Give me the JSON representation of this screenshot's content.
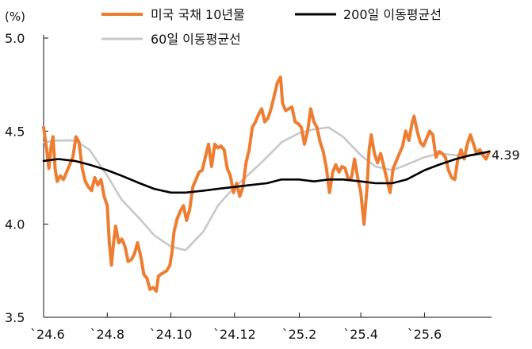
{
  "chart_data": {
    "type": "line",
    "unit_label": "(%)",
    "title": "",
    "xlabel": "",
    "ylabel": "",
    "ylim": [
      3.5,
      5.0
    ],
    "yticks": [
      "5.0",
      "4.5",
      "4.0",
      "3.5"
    ],
    "xticks": [
      {
        "label": "`24.6",
        "x": "2024-06-01"
      },
      {
        "label": "`24.8",
        "x": "2024-08-01"
      },
      {
        "label": "`24.10",
        "x": "2024-10-01"
      },
      {
        "label": "`24.12",
        "x": "2024-12-01"
      },
      {
        "label": "`25.2",
        "x": "2025-02-01"
      },
      {
        "label": "`25.4",
        "x": "2025-04-01"
      },
      {
        "label": "`25.6",
        "x": "2025-06-01"
      }
    ],
    "end_label": "4.39",
    "legend_position": "top",
    "series": [
      {
        "name": "미국 국채 10년물",
        "color": "#ED7D31",
        "points": [
          [
            "2024-06-01",
            4.52
          ],
          [
            "2024-06-04",
            4.4
          ],
          [
            "2024-06-06",
            4.3
          ],
          [
            "2024-06-08",
            4.41
          ],
          [
            "2024-06-10",
            4.47
          ],
          [
            "2024-06-12",
            4.3
          ],
          [
            "2024-06-14",
            4.23
          ],
          [
            "2024-06-17",
            4.26
          ],
          [
            "2024-06-20",
            4.24
          ],
          [
            "2024-06-23",
            4.28
          ],
          [
            "2024-06-26",
            4.32
          ],
          [
            "2024-06-29",
            4.36
          ],
          [
            "2024-07-02",
            4.47
          ],
          [
            "2024-07-05",
            4.44
          ],
          [
            "2024-07-08",
            4.3
          ],
          [
            "2024-07-11",
            4.23
          ],
          [
            "2024-07-14",
            4.2
          ],
          [
            "2024-07-17",
            4.18
          ],
          [
            "2024-07-20",
            4.25
          ],
          [
            "2024-07-23",
            4.21
          ],
          [
            "2024-07-26",
            4.24
          ],
          [
            "2024-07-29",
            4.15
          ],
          [
            "2024-08-01",
            4.1
          ],
          [
            "2024-08-03",
            3.9
          ],
          [
            "2024-08-05",
            3.78
          ],
          [
            "2024-08-07",
            3.9
          ],
          [
            "2024-08-09",
            3.99
          ],
          [
            "2024-08-12",
            3.9
          ],
          [
            "2024-08-15",
            3.92
          ],
          [
            "2024-08-18",
            3.88
          ],
          [
            "2024-08-21",
            3.8
          ],
          [
            "2024-08-24",
            3.81
          ],
          [
            "2024-08-27",
            3.84
          ],
          [
            "2024-08-30",
            3.9
          ],
          [
            "2024-09-02",
            3.83
          ],
          [
            "2024-09-05",
            3.73
          ],
          [
            "2024-09-08",
            3.71
          ],
          [
            "2024-09-11",
            3.65
          ],
          [
            "2024-09-14",
            3.66
          ],
          [
            "2024-09-17",
            3.64
          ],
          [
            "2024-09-19",
            3.72
          ],
          [
            "2024-09-21",
            3.73
          ],
          [
            "2024-09-24",
            3.74
          ],
          [
            "2024-09-27",
            3.75
          ],
          [
            "2024-09-30",
            3.78
          ],
          [
            "2024-10-02",
            3.85
          ],
          [
            "2024-10-04",
            3.96
          ],
          [
            "2024-10-07",
            4.03
          ],
          [
            "2024-10-10",
            4.07
          ],
          [
            "2024-10-13",
            4.1
          ],
          [
            "2024-10-16",
            4.02
          ],
          [
            "2024-10-19",
            4.08
          ],
          [
            "2024-10-22",
            4.2
          ],
          [
            "2024-10-25",
            4.24
          ],
          [
            "2024-10-28",
            4.28
          ],
          [
            "2024-10-31",
            4.29
          ],
          [
            "2024-11-03",
            4.36
          ],
          [
            "2024-11-06",
            4.43
          ],
          [
            "2024-11-09",
            4.31
          ],
          [
            "2024-11-12",
            4.43
          ],
          [
            "2024-11-15",
            4.41
          ],
          [
            "2024-11-18",
            4.42
          ],
          [
            "2024-11-21",
            4.4
          ],
          [
            "2024-11-24",
            4.3
          ],
          [
            "2024-11-27",
            4.26
          ],
          [
            "2024-11-30",
            4.17
          ],
          [
            "2024-12-03",
            4.22
          ],
          [
            "2024-12-06",
            4.15
          ],
          [
            "2024-12-09",
            4.2
          ],
          [
            "2024-12-12",
            4.33
          ],
          [
            "2024-12-15",
            4.4
          ],
          [
            "2024-12-18",
            4.52
          ],
          [
            "2024-12-21",
            4.55
          ],
          [
            "2024-12-24",
            4.59
          ],
          [
            "2024-12-27",
            4.62
          ],
          [
            "2024-12-30",
            4.55
          ],
          [
            "2025-01-02",
            4.57
          ],
          [
            "2025-01-05",
            4.62
          ],
          [
            "2025-01-08",
            4.69
          ],
          [
            "2025-01-11",
            4.76
          ],
          [
            "2025-01-14",
            4.79
          ],
          [
            "2025-01-16",
            4.65
          ],
          [
            "2025-01-19",
            4.61
          ],
          [
            "2025-01-22",
            4.62
          ],
          [
            "2025-01-25",
            4.63
          ],
          [
            "2025-01-28",
            4.55
          ],
          [
            "2025-01-31",
            4.54
          ],
          [
            "2025-02-03",
            4.52
          ],
          [
            "2025-02-06",
            4.43
          ],
          [
            "2025-02-09",
            4.5
          ],
          [
            "2025-02-12",
            4.62
          ],
          [
            "2025-02-15",
            4.55
          ],
          [
            "2025-02-18",
            4.52
          ],
          [
            "2025-02-21",
            4.44
          ],
          [
            "2025-02-24",
            4.39
          ],
          [
            "2025-02-27",
            4.3
          ],
          [
            "2025-03-02",
            4.17
          ],
          [
            "2025-03-05",
            4.28
          ],
          [
            "2025-03-08",
            4.32
          ],
          [
            "2025-03-11",
            4.28
          ],
          [
            "2025-03-14",
            4.31
          ],
          [
            "2025-03-17",
            4.3
          ],
          [
            "2025-03-20",
            4.24
          ],
          [
            "2025-03-23",
            4.25
          ],
          [
            "2025-03-26",
            4.35
          ],
          [
            "2025-03-29",
            4.25
          ],
          [
            "2025-04-01",
            4.17
          ],
          [
            "2025-04-04",
            4.0
          ],
          [
            "2025-04-07",
            4.2
          ],
          [
            "2025-04-09",
            4.4
          ],
          [
            "2025-04-11",
            4.48
          ],
          [
            "2025-04-14",
            4.38
          ],
          [
            "2025-04-17",
            4.33
          ],
          [
            "2025-04-20",
            4.38
          ],
          [
            "2025-04-23",
            4.31
          ],
          [
            "2025-04-26",
            4.24
          ],
          [
            "2025-04-29",
            4.17
          ],
          [
            "2025-05-02",
            4.3
          ],
          [
            "2025-05-05",
            4.34
          ],
          [
            "2025-05-08",
            4.38
          ],
          [
            "2025-05-11",
            4.42
          ],
          [
            "2025-05-14",
            4.5
          ],
          [
            "2025-05-17",
            4.45
          ],
          [
            "2025-05-20",
            4.54
          ],
          [
            "2025-05-22",
            4.58
          ],
          [
            "2025-05-25",
            4.5
          ],
          [
            "2025-05-28",
            4.44
          ],
          [
            "2025-05-31",
            4.42
          ],
          [
            "2025-06-03",
            4.46
          ],
          [
            "2025-06-06",
            4.5
          ],
          [
            "2025-06-09",
            4.48
          ],
          [
            "2025-06-12",
            4.36
          ],
          [
            "2025-06-15",
            4.39
          ],
          [
            "2025-06-18",
            4.38
          ],
          [
            "2025-06-21",
            4.36
          ],
          [
            "2025-06-24",
            4.29
          ],
          [
            "2025-06-27",
            4.25
          ],
          [
            "2025-06-30",
            4.24
          ],
          [
            "2025-07-03",
            4.35
          ],
          [
            "2025-07-06",
            4.4
          ],
          [
            "2025-07-09",
            4.35
          ],
          [
            "2025-07-12",
            4.43
          ],
          [
            "2025-07-15",
            4.48
          ],
          [
            "2025-07-18",
            4.43
          ],
          [
            "2025-07-21",
            4.38
          ],
          [
            "2025-07-24",
            4.4
          ],
          [
            "2025-07-27",
            4.37
          ],
          [
            "2025-07-30",
            4.35
          ],
          [
            "2025-08-02",
            4.39
          ]
        ]
      },
      {
        "name": "200일 이동평균선",
        "color": "#000000",
        "points": [
          [
            "2024-06-01",
            4.34
          ],
          [
            "2024-06-15",
            4.35
          ],
          [
            "2024-07-01",
            4.34
          ],
          [
            "2024-07-15",
            4.32
          ],
          [
            "2024-08-01",
            4.29
          ],
          [
            "2024-08-15",
            4.26
          ],
          [
            "2024-09-01",
            4.22
          ],
          [
            "2024-09-15",
            4.19
          ],
          [
            "2024-10-01",
            4.17
          ],
          [
            "2024-10-15",
            4.17
          ],
          [
            "2024-11-01",
            4.18
          ],
          [
            "2024-11-15",
            4.19
          ],
          [
            "2024-12-01",
            4.2
          ],
          [
            "2024-12-15",
            4.21
          ],
          [
            "2025-01-01",
            4.22
          ],
          [
            "2025-01-15",
            4.24
          ],
          [
            "2025-02-01",
            4.24
          ],
          [
            "2025-02-15",
            4.23
          ],
          [
            "2025-03-01",
            4.24
          ],
          [
            "2025-03-15",
            4.24
          ],
          [
            "2025-04-01",
            4.23
          ],
          [
            "2025-04-15",
            4.22
          ],
          [
            "2025-05-01",
            4.22
          ],
          [
            "2025-05-15",
            4.24
          ],
          [
            "2025-06-01",
            4.29
          ],
          [
            "2025-06-15",
            4.32
          ],
          [
            "2025-07-01",
            4.35
          ],
          [
            "2025-07-15",
            4.37
          ],
          [
            "2025-08-02",
            4.39
          ]
        ]
      },
      {
        "name": "60일 이동평균선",
        "color": "#C8C8C8",
        "points": [
          [
            "2024-06-01",
            4.44
          ],
          [
            "2024-06-15",
            4.45
          ],
          [
            "2024-07-01",
            4.45
          ],
          [
            "2024-07-15",
            4.4
          ],
          [
            "2024-08-01",
            4.26
          ],
          [
            "2024-08-15",
            4.13
          ],
          [
            "2024-09-01",
            4.03
          ],
          [
            "2024-09-15",
            3.94
          ],
          [
            "2024-10-01",
            3.88
          ],
          [
            "2024-10-15",
            3.86
          ],
          [
            "2024-11-01",
            3.96
          ],
          [
            "2024-11-15",
            4.1
          ],
          [
            "2024-12-01",
            4.2
          ],
          [
            "2024-12-15",
            4.27
          ],
          [
            "2025-01-01",
            4.36
          ],
          [
            "2025-01-15",
            4.44
          ],
          [
            "2025-02-01",
            4.49
          ],
          [
            "2025-02-15",
            4.51
          ],
          [
            "2025-03-01",
            4.52
          ],
          [
            "2025-03-15",
            4.47
          ],
          [
            "2025-04-01",
            4.37
          ],
          [
            "2025-04-15",
            4.31
          ],
          [
            "2025-05-01",
            4.29
          ],
          [
            "2025-05-15",
            4.32
          ],
          [
            "2025-06-01",
            4.36
          ],
          [
            "2025-06-15",
            4.38
          ],
          [
            "2025-07-01",
            4.37
          ],
          [
            "2025-07-15",
            4.37
          ],
          [
            "2025-08-02",
            4.38
          ]
        ]
      }
    ]
  }
}
